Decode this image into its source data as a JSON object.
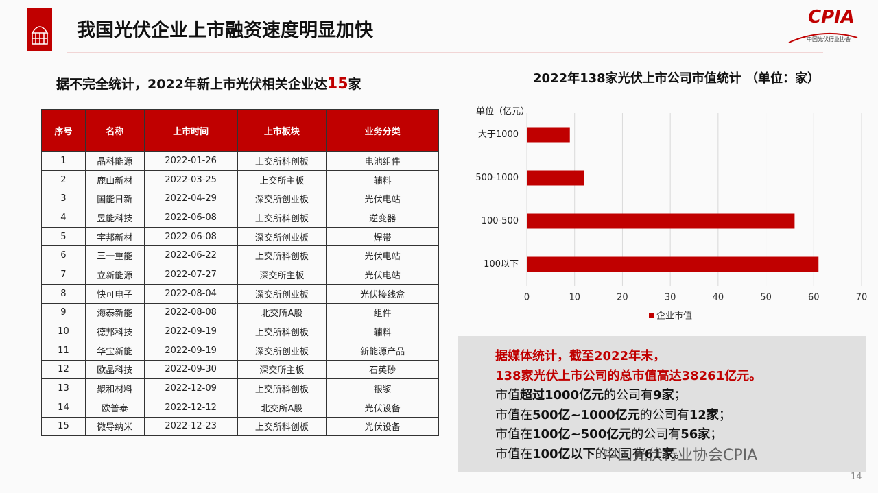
{
  "header": {
    "title": "我国光伏企业上市融资速度明显加快",
    "logo": "CPIA",
    "logo_subtitle": "中国光伏行业协会"
  },
  "subtitle": [
    "据不完全统计，2022年新上市光伏相关企业达",
    "15",
    "家"
  ],
  "table": {
    "columns": [
      "序号",
      "名称",
      "上市时间",
      "上市板块",
      "业务分类"
    ],
    "rows": [
      [
        "1",
        "晶科能源",
        "2022-01-26",
        "上交所科创板",
        "电池组件"
      ],
      [
        "2",
        "鹿山新材",
        "2022-03-25",
        "上交所主板",
        "辅料"
      ],
      [
        "3",
        "国能日新",
        "2022-04-29",
        "深交所创业板",
        "光伏电站"
      ],
      [
        "4",
        "昱能科技",
        "2022-06-08",
        "上交所科创板",
        "逆变器"
      ],
      [
        "5",
        "宇邦新材",
        "2022-06-08",
        "深交所创业板",
        "焊带"
      ],
      [
        "6",
        "三一重能",
        "2022-06-22",
        "上交所科创板",
        "光伏电站"
      ],
      [
        "7",
        "立新能源",
        "2022-07-27",
        "深交所主板",
        "光伏电站"
      ],
      [
        "8",
        "快可电子",
        "2022-08-04",
        "深交所创业板",
        "光伏接线盒"
      ],
      [
        "9",
        "海泰新能",
        "2022-08-08",
        "北交所A股",
        "组件"
      ],
      [
        "10",
        "德邦科技",
        "2022-09-19",
        "上交所科创板",
        "辅料"
      ],
      [
        "11",
        "华宝新能",
        "2022-09-19",
        "深交所创业板",
        "新能源产品"
      ],
      [
        "12",
        "欧晶科技",
        "2022-09-30",
        "深交所主板",
        "石英砂"
      ],
      [
        "13",
        "聚和材料",
        "2022-12-09",
        "上交所科创板",
        "银浆"
      ],
      [
        "14",
        "欧普泰",
        "2022-12-12",
        "北交所A股",
        "光伏设备"
      ],
      [
        "15",
        "微导纳米",
        "2022-12-23",
        "上交所科创板",
        "光伏设备"
      ]
    ]
  },
  "chart_data": {
    "type": "bar",
    "orientation": "horizontal",
    "title": "2022年138家光伏上市公司市值统计 （单位：家）",
    "y_label": "单位（亿元）",
    "categories": [
      "大于1000",
      "500-1000",
      "100-500",
      "100以下"
    ],
    "series": [
      {
        "name": "企业市值",
        "color": "#c00000",
        "values": [
          9,
          12,
          56,
          61
        ]
      }
    ],
    "xlim": [
      0,
      70
    ],
    "xticks": [
      0,
      10,
      20,
      30,
      40,
      50,
      60,
      70
    ],
    "grid": true,
    "legend": "bottom"
  },
  "notes": {
    "lines": [
      [
        "据媒体统计，截至2022年末，"
      ],
      [
        "138家光伏上市公司的总市值高达38261亿元。"
      ],
      [
        "市值",
        "超过1000亿元",
        "的公司有",
        "9家",
        "；"
      ],
      [
        "市值在",
        "500亿~1000亿元",
        "的公司有",
        "12家",
        "；"
      ],
      [
        "市值在",
        "100亿~500亿元",
        "的公司有",
        "56家",
        "；"
      ],
      [
        "市值在",
        "100亿以下",
        "的公司有",
        "61家",
        "。"
      ]
    ]
  },
  "watermark": "中国光伏行业协会CPIA",
  "page_number": "14"
}
